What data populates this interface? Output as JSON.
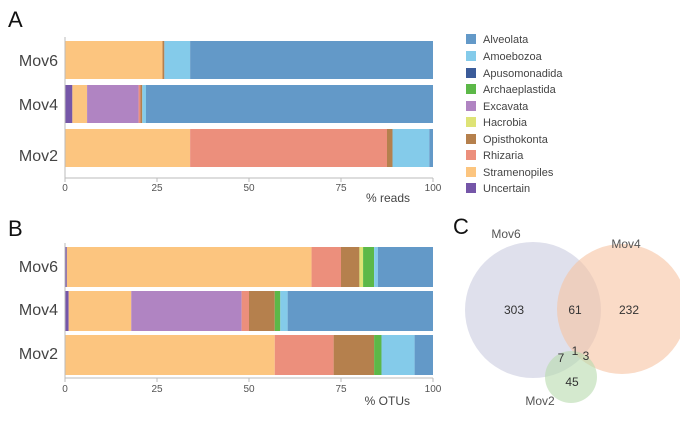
{
  "colors": {
    "Alveolata": "#6399c8",
    "Amoebozoa": "#84cbea",
    "Apusomonadida": "#3b5b99",
    "Archaeplastida": "#5cb848",
    "Excavata": "#b084c2",
    "Hacrobia": "#dee376",
    "Opisthokonta": "#b5804d",
    "Rhizaria": "#ec8f7c",
    "Stramenopiles": "#fcc57f",
    "Uncertain": "#7556a8"
  },
  "legend": {
    "items": [
      "Alveolata",
      "Amoebozoa",
      "Apusomonadida",
      "Archaeplastida",
      "Excavata",
      "Hacrobia",
      "Opisthokonta",
      "Rhizaria",
      "Stramenopiles",
      "Uncertain"
    ]
  },
  "chart_data": [
    {
      "panel": "A",
      "type": "bar",
      "orientation": "horizontal",
      "stacked": true,
      "categories": [
        "Mov6",
        "Mov4",
        "Mov2"
      ],
      "xlabel": "% reads",
      "xlim": [
        0,
        100
      ],
      "xticks": [
        "0",
        "25",
        "50",
        "75",
        "100"
      ],
      "grid": false,
      "stack_order": [
        "Uncertain",
        "Stramenopiles",
        "Excavata",
        "Rhizaria",
        "Opisthokonta",
        "Hacrobia",
        "Archaeplastida",
        "Apusomonadida",
        "Amoebozoa",
        "Alveolata"
      ],
      "series": [
        {
          "name": "Uncertain",
          "values": [
            0,
            2,
            0
          ]
        },
        {
          "name": "Stramenopiles",
          "values": [
            26.5,
            4,
            34
          ]
        },
        {
          "name": "Excavata",
          "values": [
            0,
            14,
            0
          ]
        },
        {
          "name": "Rhizaria",
          "values": [
            0,
            0.5,
            53.5
          ]
        },
        {
          "name": "Opisthokonta",
          "values": [
            0.5,
            0.5,
            1.5
          ]
        },
        {
          "name": "Hacrobia",
          "values": [
            0,
            0,
            0
          ]
        },
        {
          "name": "Archaeplastida",
          "values": [
            0,
            0,
            0
          ]
        },
        {
          "name": "Apusomonadida",
          "values": [
            0,
            0,
            0
          ]
        },
        {
          "name": "Amoebozoa",
          "values": [
            7,
            1,
            10
          ]
        },
        {
          "name": "Alveolata",
          "values": [
            66,
            78,
            1
          ]
        }
      ]
    },
    {
      "panel": "B",
      "type": "bar",
      "orientation": "horizontal",
      "stacked": true,
      "categories": [
        "Mov6",
        "Mov4",
        "Mov2"
      ],
      "xlabel": "% OTUs",
      "xlim": [
        0,
        100
      ],
      "xticks": [
        "0",
        "25",
        "50",
        "75",
        "100"
      ],
      "grid": false,
      "stack_order": [
        "Uncertain",
        "Stramenopiles",
        "Excavata",
        "Rhizaria",
        "Opisthokonta",
        "Hacrobia",
        "Archaeplastida",
        "Apusomonadida",
        "Amoebozoa",
        "Alveolata"
      ],
      "series": [
        {
          "name": "Uncertain",
          "values": [
            0.5,
            1,
            0
          ]
        },
        {
          "name": "Stramenopiles",
          "values": [
            66.5,
            17,
            57
          ]
        },
        {
          "name": "Excavata",
          "values": [
            0,
            30,
            0
          ]
        },
        {
          "name": "Rhizaria",
          "values": [
            8,
            2,
            16
          ]
        },
        {
          "name": "Opisthokonta",
          "values": [
            5,
            7,
            11
          ]
        },
        {
          "name": "Hacrobia",
          "values": [
            1,
            0,
            0
          ]
        },
        {
          "name": "Archaeplastida",
          "values": [
            3,
            1.5,
            2
          ]
        },
        {
          "name": "Apusomonadida",
          "values": [
            0,
            0,
            0
          ]
        },
        {
          "name": "Amoebozoa",
          "values": [
            1,
            2,
            9
          ]
        },
        {
          "name": "Alveolata",
          "values": [
            15,
            39.5,
            5
          ]
        }
      ]
    },
    {
      "panel": "C",
      "type": "venn",
      "sets": [
        {
          "name": "Mov6",
          "color": "#c9cce0"
        },
        {
          "name": "Mov4",
          "color": "#f7c3a2"
        },
        {
          "name": "Mov2",
          "color": "#b7dbae"
        }
      ],
      "regions": {
        "Mov6_only": "303",
        "Mov4_only": "232",
        "Mov2_only": "45",
        "Mov6_Mov4": "61",
        "Mov6_Mov2": "7",
        "Mov4_Mov2": "3",
        "all_three": "1"
      }
    }
  ]
}
